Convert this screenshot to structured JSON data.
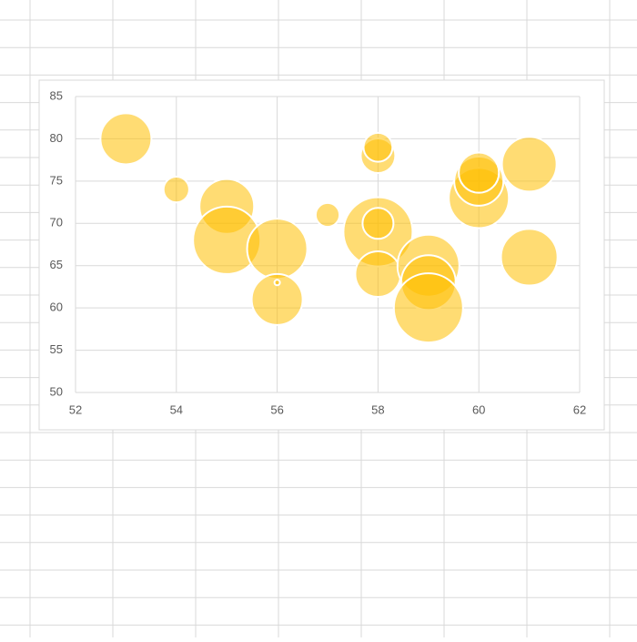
{
  "chart_data": {
    "type": "bubble",
    "x": [
      53,
      54,
      55,
      55,
      56,
      56,
      56,
      57,
      58,
      58,
      58,
      58,
      58,
      59,
      59,
      59,
      60,
      60,
      60,
      61,
      61
    ],
    "values": [
      80,
      74,
      72,
      68,
      67,
      61,
      63,
      71,
      78,
      79,
      69,
      70,
      64,
      65,
      63,
      60,
      73,
      75,
      76,
      77,
      66
    ],
    "sizes": [
      87,
      22,
      100,
      152,
      121,
      87,
      1,
      19,
      40,
      28,
      160,
      32,
      69,
      128,
      100,
      160,
      121,
      81,
      54,
      100,
      107
    ],
    "color": "#ffc000",
    "xlim": [
      52,
      62
    ],
    "xticks": [
      52,
      54,
      56,
      58,
      60,
      62
    ],
    "ylim": [
      50,
      85
    ],
    "yticks": [
      50,
      55,
      60,
      65,
      70,
      75,
      80,
      85
    ],
    "grid": true
  }
}
